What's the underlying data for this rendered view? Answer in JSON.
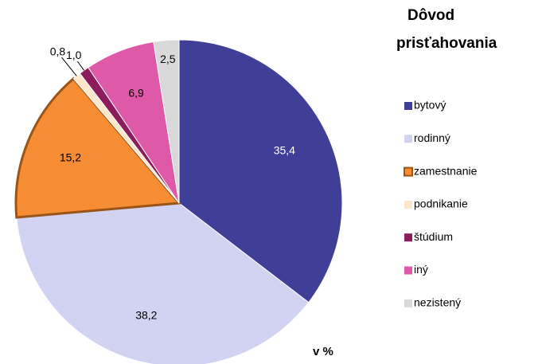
{
  "chart_data": {
    "type": "pie",
    "legend_title": [
      "Dôvod",
      "prisťahovania"
    ],
    "unit_note": "v %",
    "categories": [
      "bytový",
      "rodinný",
      "zamestnanie",
      "podnikanie",
      "štúdium",
      "iný",
      "nezistený"
    ],
    "values": [
      35.4,
      38.2,
      15.2,
      0.8,
      1.0,
      6.9,
      2.5
    ],
    "value_labels": [
      "35,4",
      "38,2",
      "15,2",
      "0,8",
      "1,0",
      "6,9",
      "2,5"
    ],
    "colors": [
      "#3f3f98",
      "#d2d2f2",
      "#f68c34",
      "#fde7cc",
      "#8c1c5c",
      "#de5aa8",
      "#d9d9d9"
    ],
    "legend": "right"
  }
}
